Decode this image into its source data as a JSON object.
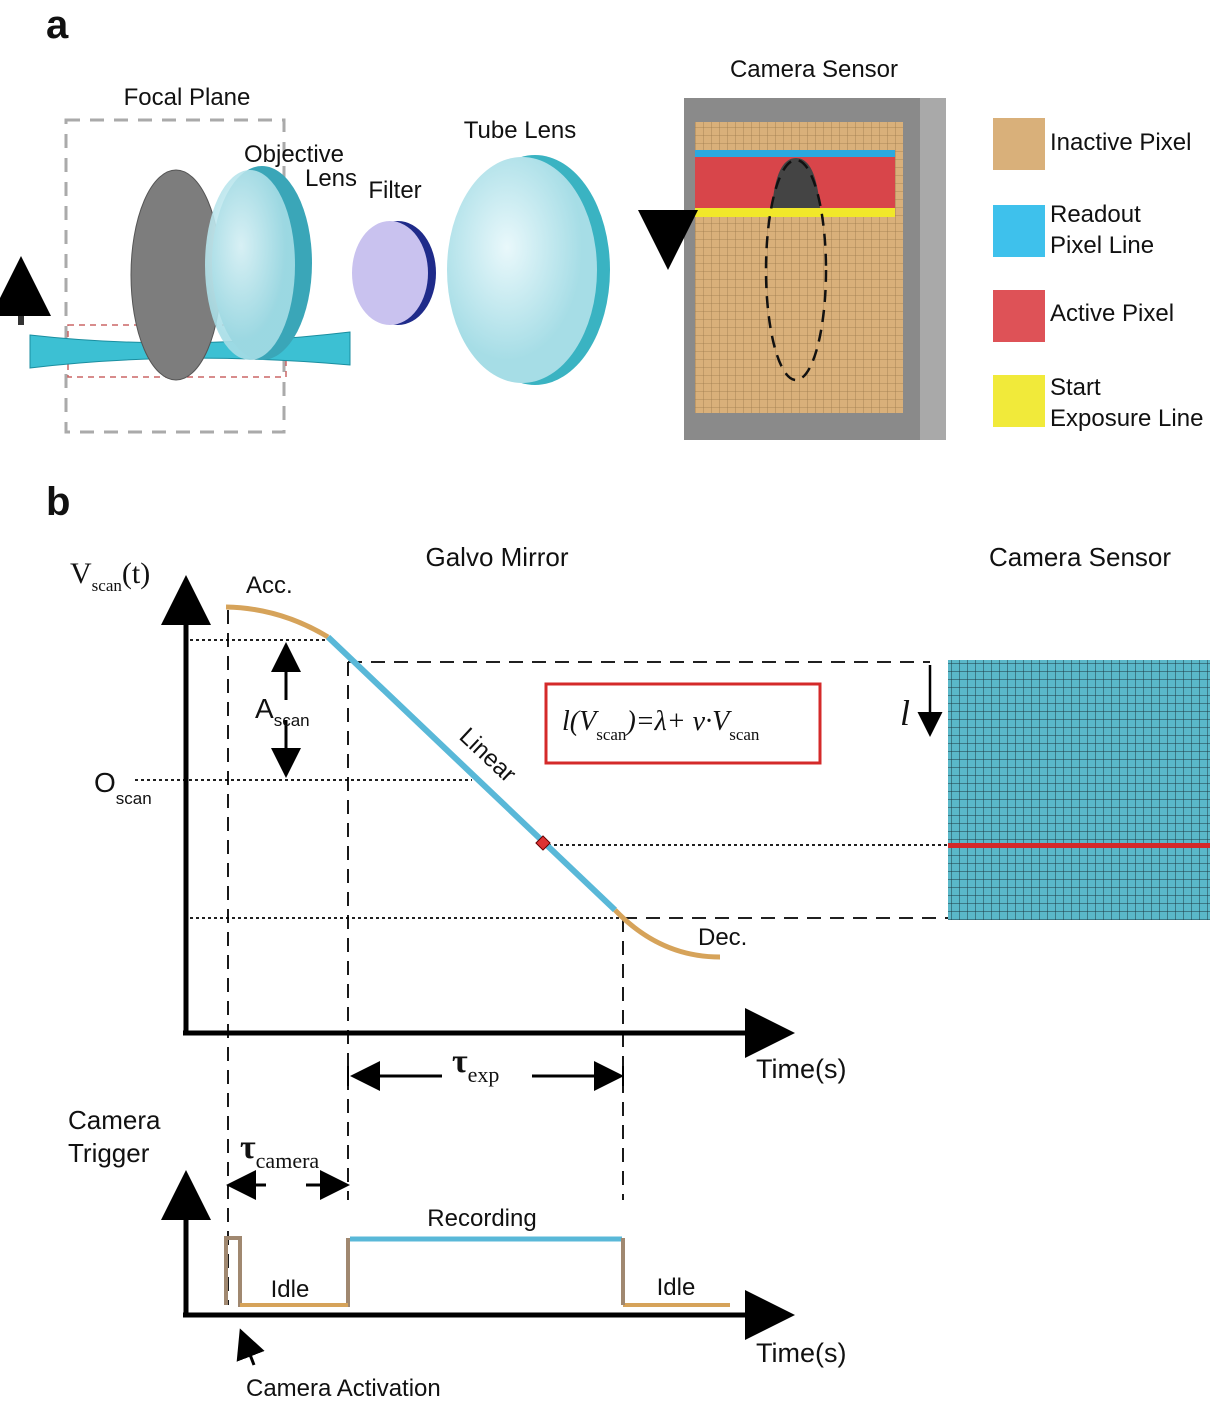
{
  "panel_a": {
    "label": "a",
    "focal_plane": "Focal Plane",
    "objective_lens": [
      "Objective",
      "Lens"
    ],
    "filter": "Filter",
    "tube_lens": "Tube Lens",
    "camera_sensor": "Camera Sensor",
    "legend": [
      {
        "lines": [
          "Inactive Pixel"
        ]
      },
      {
        "lines": [
          "Readout",
          "Pixel Line"
        ]
      },
      {
        "lines": [
          "Active Pixel"
        ]
      },
      {
        "lines": [
          "Start",
          "Exposure Line"
        ]
      }
    ]
  },
  "panel_b": {
    "label": "b",
    "galvo_mirror": "Galvo Mirror",
    "camera_sensor": "Camera Sensor",
    "y_axis": {
      "symbol": "V",
      "subscript": "scan",
      "suffix": "(t)"
    },
    "acc": "Acc.",
    "amplitude": {
      "symbol": "A",
      "subscript": "scan"
    },
    "offset": {
      "symbol": "O",
      "subscript": "scan"
    },
    "linear": "Linear",
    "formula": {
      "lhs": "l(V",
      "lhs_sub": "scan",
      "rhs": ")=λ+ v·V",
      "rhs_sub": "scan"
    },
    "line_symbol": "l",
    "dec": "Dec.",
    "x_axis": "Time(s)",
    "tau_exp": {
      "symbol": "τ",
      "subscript": "exp"
    },
    "camera_trigger": [
      "Camera",
      "Trigger"
    ],
    "tau_camera": {
      "symbol": "τ",
      "subscript": "camera"
    },
    "recording": "Recording",
    "idle_1": "Idle",
    "idle_2": "Idle",
    "x_axis_2": "Time(s)",
    "camera_activation": "Camera Activation"
  }
}
